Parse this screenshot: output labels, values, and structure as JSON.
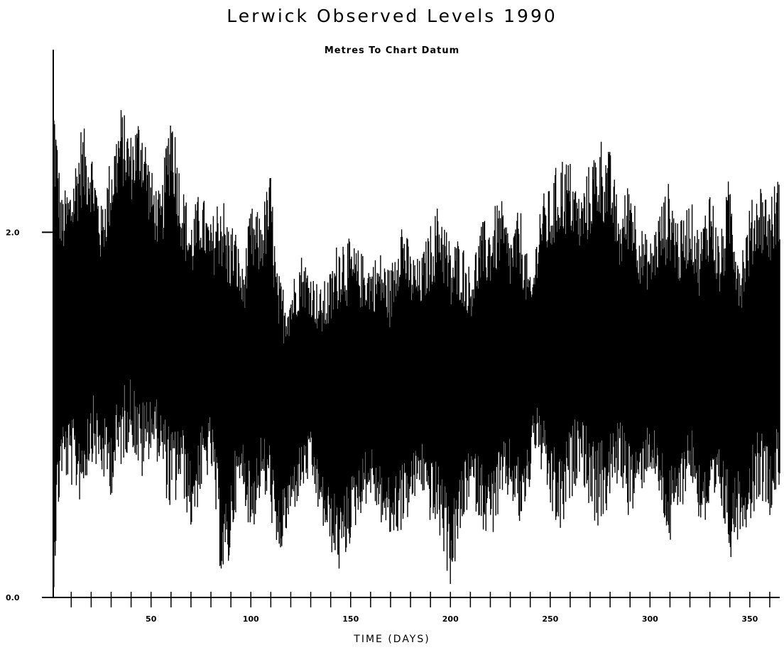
{
  "chart_data": {
    "type": "line",
    "title": "Lerwick Observed Levels 1990",
    "subtitle": "Metres To Chart Datum",
    "xlabel": "TIME (DAYS)",
    "ylabel": "",
    "xlim": [
      1,
      365
    ],
    "ylim": [
      0.0,
      3.0
    ],
    "y_tick_labels": [
      {
        "value": 0.0,
        "label": "0.0"
      },
      {
        "value": 2.0,
        "label": "2.0"
      }
    ],
    "x_tick_labels": [
      {
        "value": 50,
        "label": "50"
      },
      {
        "value": 100,
        "label": "100"
      },
      {
        "value": 150,
        "label": "150"
      },
      {
        "value": 200,
        "label": "200"
      },
      {
        "value": 250,
        "label": "250"
      },
      {
        "value": 300,
        "label": "300"
      },
      {
        "value": 350,
        "label": "350"
      }
    ],
    "x_minor_tick_step": 10,
    "grid": false,
    "series_color": "#000000",
    "series": [
      {
        "name": "",
        "envelope_days": [
          1,
          5,
          10,
          15,
          20,
          25,
          30,
          35,
          40,
          45,
          50,
          55,
          60,
          65,
          70,
          75,
          80,
          85,
          88,
          92,
          96,
          100,
          105,
          110,
          113,
          117,
          121,
          125,
          130,
          135,
          140,
          145,
          150,
          155,
          160,
          165,
          170,
          175,
          180,
          185,
          190,
          195,
          200,
          205,
          210,
          215,
          220,
          225,
          230,
          235,
          240,
          241,
          245,
          250,
          255,
          260,
          265,
          270,
          275,
          280,
          285,
          290,
          295,
          300,
          305,
          310,
          315,
          320,
          325,
          330,
          335,
          340,
          345,
          350,
          355,
          360,
          365
        ],
        "envelope_high": [
          2.9,
          2.2,
          2.3,
          2.6,
          2.5,
          2.15,
          2.45,
          2.7,
          2.55,
          2.7,
          2.35,
          2.2,
          2.8,
          2.3,
          2.1,
          2.25,
          2.05,
          2.3,
          2.1,
          2.05,
          1.8,
          2.15,
          2.1,
          2.35,
          1.8,
          1.7,
          1.75,
          1.9,
          1.8,
          1.7,
          1.8,
          2.05,
          1.95,
          1.9,
          1.85,
          1.9,
          1.8,
          2.15,
          1.9,
          1.85,
          2.05,
          2.2,
          1.95,
          2.0,
          1.8,
          2.05,
          2.1,
          2.2,
          2.0,
          2.15,
          1.75,
          1.75,
          2.2,
          2.25,
          2.45,
          2.4,
          2.2,
          2.4,
          2.55,
          2.45,
          2.1,
          2.35,
          2.05,
          1.95,
          2.15,
          2.3,
          2.05,
          2.2,
          2.0,
          2.3,
          1.95,
          2.35,
          1.9,
          2.15,
          2.3,
          2.2,
          2.35
        ],
        "envelope_low": [
          0.0,
          0.65,
          0.6,
          0.5,
          0.75,
          0.65,
          0.55,
          0.7,
          0.85,
          0.6,
          0.8,
          0.7,
          0.4,
          0.6,
          0.35,
          0.55,
          0.7,
          0.1,
          0.05,
          0.45,
          0.6,
          0.3,
          0.55,
          0.45,
          0.15,
          0.3,
          0.45,
          0.55,
          0.65,
          0.4,
          0.25,
          0.1,
          0.3,
          0.45,
          0.55,
          0.4,
          0.3,
          0.35,
          0.45,
          0.6,
          0.4,
          0.3,
          0.05,
          0.3,
          0.55,
          0.4,
          0.3,
          0.45,
          0.55,
          0.35,
          0.6,
          0.85,
          0.7,
          0.45,
          0.3,
          0.5,
          0.7,
          0.45,
          0.35,
          0.5,
          0.65,
          0.4,
          0.55,
          0.7,
          0.5,
          0.25,
          0.45,
          0.65,
          0.4,
          0.35,
          0.5,
          0.2,
          0.35,
          0.4,
          0.55,
          0.45,
          0.6
        ]
      }
    ]
  }
}
